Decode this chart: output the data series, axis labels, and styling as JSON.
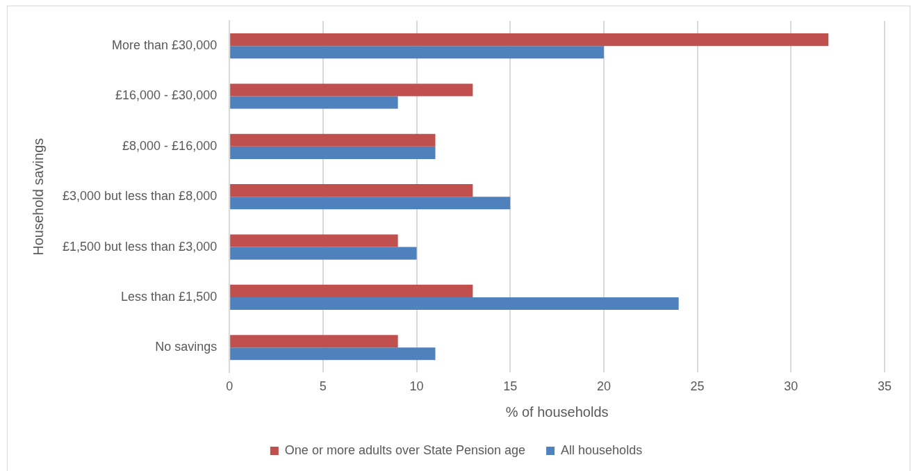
{
  "chart_data": {
    "type": "bar",
    "orientation": "horizontal",
    "xlabel": "% of households",
    "ylabel": "Household savings",
    "categories": [
      "More than £30,000",
      "£16,000 - £30,000",
      "£8,000 - £16,000",
      "£3,000 but less than £8,000",
      "£1,500 but less than £3,000",
      "Less than £1,500",
      "No savings"
    ],
    "series": [
      {
        "name": "One or more adults over State Pension age",
        "color": "#c0504d",
        "values": [
          32,
          13,
          11,
          13,
          9,
          13,
          9
        ]
      },
      {
        "name": "All households",
        "color": "#4f81bd",
        "values": [
          20,
          9,
          11,
          15,
          10,
          24,
          11
        ]
      }
    ],
    "xlim": [
      0,
      35
    ],
    "xticks": [
      0,
      5,
      10,
      15,
      20,
      25,
      30,
      35
    ],
    "grid": "x",
    "legend": "bottom"
  }
}
